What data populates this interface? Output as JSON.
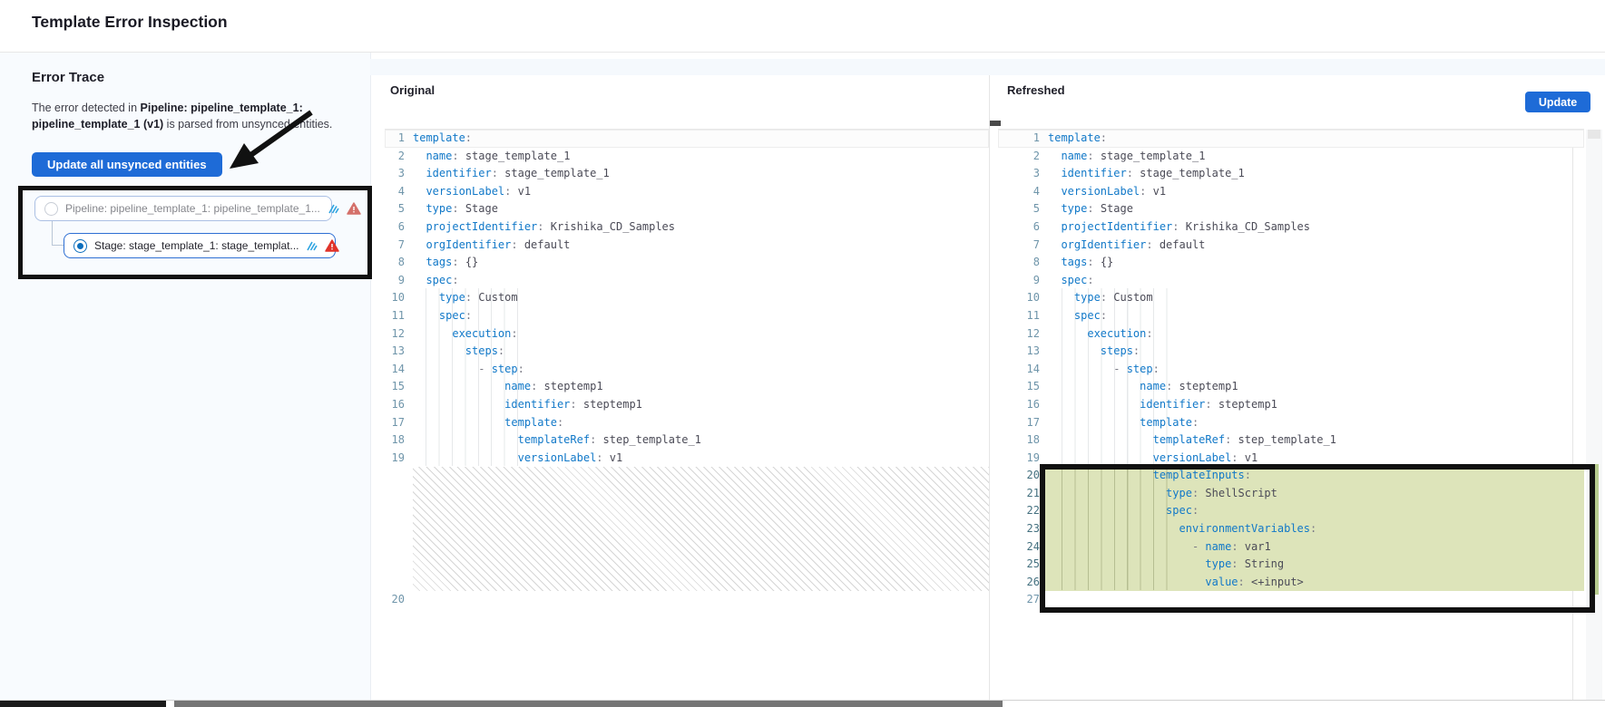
{
  "header": {
    "title": "Template Error Inspection"
  },
  "sidebar": {
    "section_title": "Error Trace",
    "message": {
      "prefix": "The error detected in ",
      "bold": "Pipeline: pipeline_template_1: pipeline_template_1 (v1)",
      "suffix": " is parsed from unsynced entities."
    },
    "update_all_button": "Update all unsynced entities",
    "tree": {
      "pipeline": {
        "label": "Pipeline: pipeline_template_1: pipeline_template_1...",
        "selected": false
      },
      "stage": {
        "label": "Stage: stage_template_1: stage_templat...",
        "selected": true
      }
    }
  },
  "panels": {
    "original": {
      "title": "Original",
      "hatch_after": 19,
      "lines": [
        "template:",
        "  name: stage_template_1",
        "  identifier: stage_template_1",
        "  versionLabel: v1",
        "  type: Stage",
        "  projectIdentifier: Krishika_CD_Samples",
        "  orgIdentifier: default",
        "  tags: {}",
        "  spec:",
        "    type: Custom",
        "    spec:",
        "      execution:",
        "        steps:",
        "          - step:",
        "              name: steptemp1",
        "              identifier: steptemp1",
        "              template:",
        "                templateRef: step_template_1",
        "                versionLabel: v1",
        ""
      ]
    },
    "refreshed": {
      "title": "Refreshed",
      "update_button": "Update",
      "added_range": [
        20,
        26
      ],
      "lines": [
        "template:",
        "  name: stage_template_1",
        "  identifier: stage_template_1",
        "  versionLabel: v1",
        "  type: Stage",
        "  projectIdentifier: Krishika_CD_Samples",
        "  orgIdentifier: default",
        "  tags: {}",
        "  spec:",
        "    type: Custom",
        "    spec:",
        "      execution:",
        "        steps:",
        "          - step:",
        "              name: steptemp1",
        "              identifier: steptemp1",
        "              template:",
        "                templateRef: step_template_1",
        "                versionLabel: v1",
        "                templateInputs:",
        "                  type: ShellScript",
        "                  spec:",
        "                    environmentVariables:",
        "                      - name: var1",
        "                        type: String",
        "                        value: <+input>",
        ""
      ]
    }
  },
  "icons": {
    "pipeline_row": [
      "template-library-icon",
      "warning-triangle-icon"
    ],
    "stage_row": [
      "template-library-icon",
      "warning-triangle-icon"
    ]
  },
  "colors": {
    "accent_blue": "#1e6bd7",
    "key_blue": "#1178c8",
    "added_line_bg": "#dde4ba",
    "warning_red": "#e0332a",
    "warning_soft_red": "#d4706a",
    "sidebar_bg": "#f8fbfe"
  }
}
